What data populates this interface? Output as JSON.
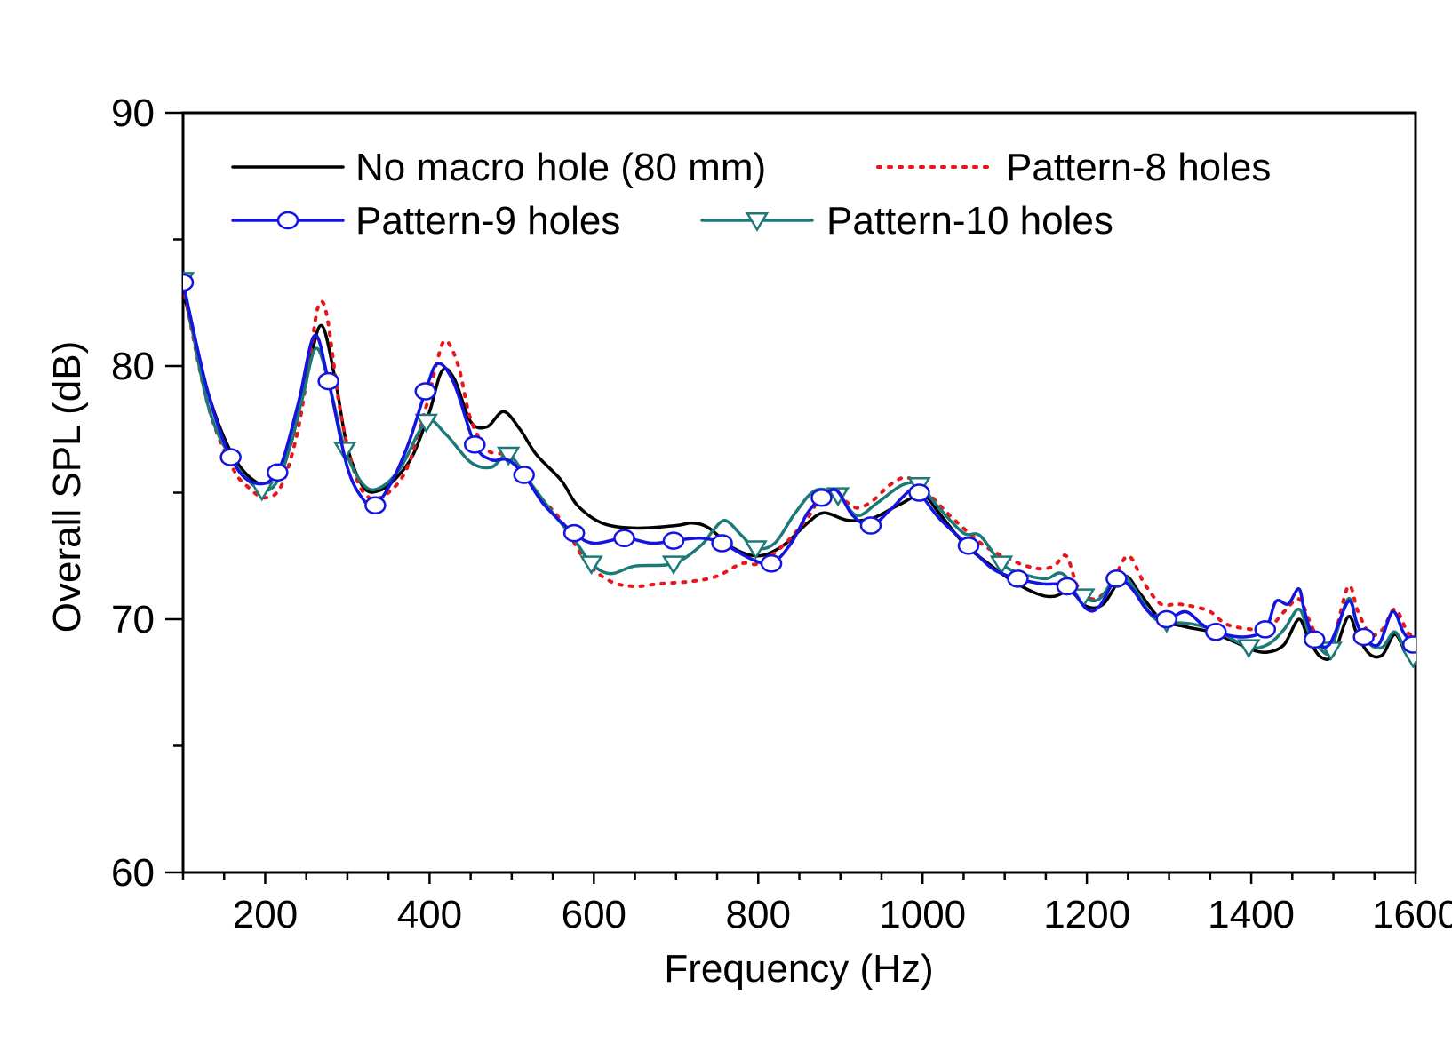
{
  "chart_data": {
    "type": "line",
    "title": "",
    "xlabel": "Frequency (Hz)",
    "ylabel": "Overall SPL (dB)",
    "xlim": [
      100,
      1600
    ],
    "ylim": [
      60,
      90
    ],
    "x_ticks": [
      200,
      400,
      600,
      800,
      1000,
      1200,
      1400,
      1600
    ],
    "x_tick_labels": [
      "200",
      "400",
      "600",
      "800",
      "1000",
      "1200",
      "1400",
      "1600"
    ],
    "y_ticks": [
      60,
      70,
      80,
      90
    ],
    "y_tick_labels": [
      "60",
      "70",
      "80",
      "90"
    ],
    "x_minor_step": 50,
    "y_minor_step": 5,
    "grid": false,
    "legend_position": "top",
    "series": [
      {
        "name": "No macro hole (80 mm)",
        "color": "#000000",
        "style": "solid",
        "marker": "none",
        "points": [
          [
            100,
            83.0
          ],
          [
            130,
            79.0
          ],
          [
            160,
            76.5
          ],
          [
            190,
            75.4
          ],
          [
            210,
            75.6
          ],
          [
            230,
            76.8
          ],
          [
            250,
            79.5
          ],
          [
            268,
            81.6
          ],
          [
            285,
            79.5
          ],
          [
            300,
            76.8
          ],
          [
            320,
            75.2
          ],
          [
            340,
            75.1
          ],
          [
            360,
            75.6
          ],
          [
            380,
            76.5
          ],
          [
            400,
            78.2
          ],
          [
            415,
            79.8
          ],
          [
            430,
            79.5
          ],
          [
            450,
            77.8
          ],
          [
            470,
            77.6
          ],
          [
            490,
            78.2
          ],
          [
            510,
            77.5
          ],
          [
            530,
            76.5
          ],
          [
            560,
            75.5
          ],
          [
            580,
            74.5
          ],
          [
            610,
            73.8
          ],
          [
            650,
            73.6
          ],
          [
            700,
            73.7
          ],
          [
            720,
            73.8
          ],
          [
            740,
            73.6
          ],
          [
            770,
            72.8
          ],
          [
            800,
            72.5
          ],
          [
            830,
            72.9
          ],
          [
            860,
            73.8
          ],
          [
            880,
            74.2
          ],
          [
            910,
            73.9
          ],
          [
            940,
            74.0
          ],
          [
            970,
            74.5
          ],
          [
            1000,
            74.9
          ],
          [
            1020,
            74.2
          ],
          [
            1050,
            73.0
          ],
          [
            1080,
            72.2
          ],
          [
            1110,
            71.5
          ],
          [
            1140,
            71.0
          ],
          [
            1160,
            70.9
          ],
          [
            1180,
            71.1
          ],
          [
            1200,
            70.5
          ],
          [
            1220,
            70.6
          ],
          [
            1245,
            71.7
          ],
          [
            1265,
            71.0
          ],
          [
            1290,
            70.0
          ],
          [
            1320,
            69.7
          ],
          [
            1350,
            69.5
          ],
          [
            1380,
            69.1
          ],
          [
            1400,
            68.8
          ],
          [
            1420,
            68.7
          ],
          [
            1440,
            69.0
          ],
          [
            1458,
            70.0
          ],
          [
            1470,
            69.2
          ],
          [
            1485,
            68.5
          ],
          [
            1500,
            68.6
          ],
          [
            1518,
            70.1
          ],
          [
            1530,
            69.3
          ],
          [
            1545,
            68.6
          ],
          [
            1560,
            68.6
          ],
          [
            1575,
            69.4
          ],
          [
            1590,
            68.6
          ],
          [
            1600,
            68.8
          ]
        ]
      },
      {
        "name": "Pattern-8 holes",
        "color": "#e8161b",
        "style": "dotted",
        "marker": "none",
        "points": [
          [
            100,
            83.2
          ],
          [
            130,
            78.5
          ],
          [
            160,
            76.0
          ],
          [
            180,
            75.2
          ],
          [
            200,
            74.8
          ],
          [
            220,
            75.3
          ],
          [
            240,
            77.5
          ],
          [
            255,
            80.5
          ],
          [
            265,
            82.4
          ],
          [
            275,
            82.0
          ],
          [
            290,
            78.5
          ],
          [
            305,
            76.2
          ],
          [
            320,
            75.0
          ],
          [
            340,
            74.8
          ],
          [
            370,
            75.8
          ],
          [
            395,
            78.3
          ],
          [
            410,
            80.3
          ],
          [
            420,
            81.0
          ],
          [
            435,
            80.0
          ],
          [
            450,
            77.9
          ],
          [
            470,
            76.7
          ],
          [
            490,
            76.5
          ],
          [
            510,
            76.0
          ],
          [
            530,
            75.0
          ],
          [
            560,
            73.9
          ],
          [
            590,
            72.3
          ],
          [
            620,
            71.5
          ],
          [
            650,
            71.3
          ],
          [
            680,
            71.4
          ],
          [
            720,
            71.5
          ],
          [
            750,
            71.7
          ],
          [
            780,
            72.2
          ],
          [
            800,
            72.2
          ],
          [
            830,
            72.9
          ],
          [
            860,
            74.0
          ],
          [
            880,
            75.0
          ],
          [
            900,
            74.8
          ],
          [
            920,
            74.4
          ],
          [
            940,
            74.7
          ],
          [
            960,
            75.3
          ],
          [
            980,
            75.6
          ],
          [
            1000,
            75.2
          ],
          [
            1030,
            74.2
          ],
          [
            1060,
            73.3
          ],
          [
            1080,
            72.8
          ],
          [
            1110,
            72.3
          ],
          [
            1140,
            72.0
          ],
          [
            1160,
            72.1
          ],
          [
            1175,
            72.5
          ],
          [
            1190,
            71.2
          ],
          [
            1210,
            70.8
          ],
          [
            1230,
            71.4
          ],
          [
            1250,
            72.5
          ],
          [
            1270,
            71.4
          ],
          [
            1290,
            70.6
          ],
          [
            1310,
            70.6
          ],
          [
            1330,
            70.5
          ],
          [
            1350,
            70.3
          ],
          [
            1370,
            69.8
          ],
          [
            1400,
            69.6
          ],
          [
            1420,
            69.6
          ],
          [
            1440,
            70.3
          ],
          [
            1458,
            70.8
          ],
          [
            1470,
            70.0
          ],
          [
            1485,
            69.0
          ],
          [
            1500,
            69.2
          ],
          [
            1518,
            71.3
          ],
          [
            1530,
            70.3
          ],
          [
            1545,
            69.4
          ],
          [
            1560,
            69.6
          ],
          [
            1575,
            70.4
          ],
          [
            1590,
            69.5
          ],
          [
            1600,
            69.3
          ]
        ]
      },
      {
        "name": "Pattern-9 holes",
        "color": "#1414e0",
        "style": "solid",
        "marker": "circle",
        "marker_x": [
          100,
          158,
          215,
          277,
          334,
          395,
          455,
          515,
          576,
          637,
          697,
          756,
          816,
          877,
          937,
          996,
          1056,
          1116,
          1176,
          1236,
          1297,
          1357,
          1417,
          1477,
          1537,
          1597
        ],
        "points": [
          [
            100,
            83.3
          ],
          [
            130,
            79.0
          ],
          [
            158,
            76.4
          ],
          [
            185,
            75.4
          ],
          [
            215,
            75.8
          ],
          [
            240,
            78.5
          ],
          [
            260,
            81.2
          ],
          [
            277,
            79.4
          ],
          [
            300,
            76.0
          ],
          [
            320,
            74.7
          ],
          [
            334,
            74.5
          ],
          [
            355,
            75.5
          ],
          [
            375,
            77.0
          ],
          [
            395,
            79.0
          ],
          [
            410,
            80.1
          ],
          [
            430,
            79.3
          ],
          [
            455,
            76.9
          ],
          [
            475,
            76.3
          ],
          [
            495,
            76.3
          ],
          [
            515,
            75.7
          ],
          [
            540,
            74.5
          ],
          [
            576,
            73.4
          ],
          [
            600,
            73.0
          ],
          [
            637,
            73.2
          ],
          [
            670,
            73.0
          ],
          [
            697,
            73.1
          ],
          [
            730,
            73.2
          ],
          [
            756,
            73.0
          ],
          [
            790,
            72.4
          ],
          [
            816,
            72.2
          ],
          [
            840,
            73.0
          ],
          [
            860,
            74.2
          ],
          [
            877,
            74.8
          ],
          [
            895,
            75.1
          ],
          [
            915,
            74.1
          ],
          [
            937,
            73.7
          ],
          [
            960,
            74.3
          ],
          [
            985,
            75.1
          ],
          [
            996,
            75.0
          ],
          [
            1020,
            74.0
          ],
          [
            1056,
            72.9
          ],
          [
            1085,
            72.0
          ],
          [
            1116,
            71.6
          ],
          [
            1145,
            71.4
          ],
          [
            1176,
            71.3
          ],
          [
            1200,
            70.4
          ],
          [
            1215,
            70.5
          ],
          [
            1236,
            71.6
          ],
          [
            1255,
            71.2
          ],
          [
            1275,
            70.3
          ],
          [
            1297,
            70.0
          ],
          [
            1320,
            70.3
          ],
          [
            1340,
            69.8
          ],
          [
            1357,
            69.5
          ],
          [
            1390,
            69.3
          ],
          [
            1417,
            69.6
          ],
          [
            1430,
            70.7
          ],
          [
            1445,
            70.6
          ],
          [
            1458,
            71.2
          ],
          [
            1465,
            70.3
          ],
          [
            1477,
            69.2
          ],
          [
            1495,
            69.0
          ],
          [
            1518,
            70.7
          ],
          [
            1528,
            69.9
          ],
          [
            1537,
            69.3
          ],
          [
            1555,
            69.0
          ],
          [
            1572,
            70.3
          ],
          [
            1585,
            69.5
          ],
          [
            1597,
            69.0
          ]
        ]
      },
      {
        "name": "Pattern-10 holes",
        "color": "#1b7a78",
        "style": "solid",
        "marker": "triangle-down",
        "marker_x": [
          100,
          196,
          297,
          396,
          496,
          597,
          697,
          797,
          897,
          996,
          1096,
          1196,
          1297,
          1397,
          1497,
          1597
        ],
        "points": [
          [
            100,
            83.4
          ],
          [
            130,
            78.5
          ],
          [
            160,
            76.3
          ],
          [
            196,
            75.1
          ],
          [
            220,
            75.8
          ],
          [
            245,
            78.7
          ],
          [
            262,
            80.7
          ],
          [
            280,
            79.0
          ],
          [
            297,
            76.7
          ],
          [
            320,
            75.3
          ],
          [
            340,
            75.2
          ],
          [
            365,
            76.0
          ],
          [
            396,
            77.8
          ],
          [
            420,
            77.3
          ],
          [
            450,
            76.2
          ],
          [
            475,
            76.0
          ],
          [
            496,
            76.5
          ],
          [
            520,
            75.5
          ],
          [
            550,
            74.2
          ],
          [
            575,
            73.2
          ],
          [
            597,
            72.2
          ],
          [
            620,
            71.8
          ],
          [
            650,
            72.1
          ],
          [
            697,
            72.2
          ],
          [
            730,
            72.9
          ],
          [
            745,
            73.5
          ],
          [
            760,
            73.9
          ],
          [
            780,
            73.3
          ],
          [
            797,
            72.8
          ],
          [
            820,
            73.0
          ],
          [
            845,
            74.2
          ],
          [
            870,
            75.1
          ],
          [
            897,
            74.9
          ],
          [
            920,
            74.1
          ],
          [
            945,
            74.6
          ],
          [
            975,
            75.3
          ],
          [
            996,
            75.3
          ],
          [
            1020,
            74.4
          ],
          [
            1050,
            73.4
          ],
          [
            1070,
            73.3
          ],
          [
            1096,
            72.2
          ],
          [
            1120,
            71.8
          ],
          [
            1150,
            71.6
          ],
          [
            1170,
            71.8
          ],
          [
            1196,
            70.9
          ],
          [
            1215,
            70.8
          ],
          [
            1240,
            71.8
          ],
          [
            1260,
            71.1
          ],
          [
            1280,
            70.1
          ],
          [
            1297,
            69.9
          ],
          [
            1330,
            69.8
          ],
          [
            1360,
            69.5
          ],
          [
            1397,
            68.9
          ],
          [
            1420,
            69.0
          ],
          [
            1440,
            69.6
          ],
          [
            1458,
            70.4
          ],
          [
            1470,
            69.5
          ],
          [
            1485,
            68.8
          ],
          [
            1497,
            68.8
          ],
          [
            1518,
            70.8
          ],
          [
            1530,
            69.7
          ],
          [
            1545,
            69.0
          ],
          [
            1560,
            68.9
          ],
          [
            1575,
            69.5
          ],
          [
            1590,
            68.6
          ],
          [
            1597,
            68.5
          ]
        ]
      }
    ]
  }
}
